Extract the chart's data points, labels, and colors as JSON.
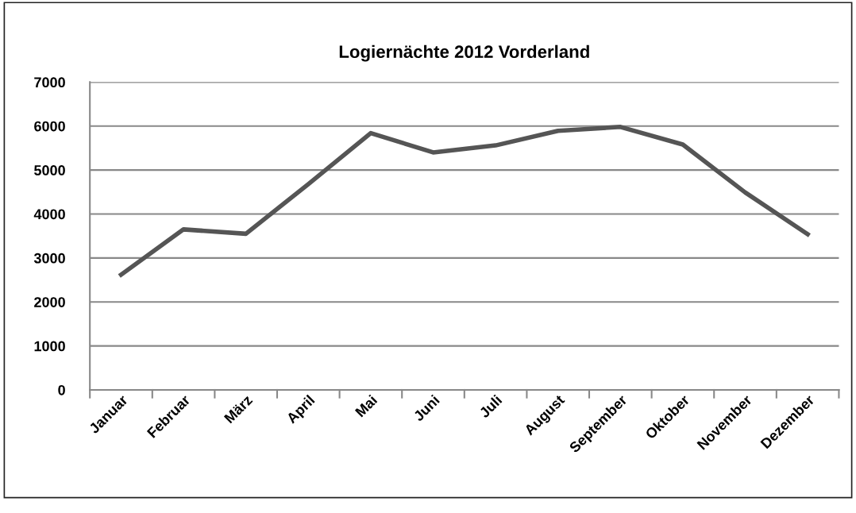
{
  "chart_data": {
    "type": "line",
    "title": "Logiernächte 2012 Vorderland",
    "categories": [
      "Januar",
      "Februar",
      "März",
      "April",
      "Mai",
      "Juni",
      "Juli",
      "August",
      "September",
      "Oktober",
      "November",
      "Dezember"
    ],
    "series": [
      {
        "color": "#555555",
        "values": [
          2620,
          3650,
          3550,
          4680,
          5840,
          5400,
          5560,
          5890,
          5980,
          5580,
          4490,
          3540
        ]
      }
    ],
    "ylim": [
      0,
      7000
    ],
    "yticks": [
      0,
      1000,
      2000,
      3000,
      4000,
      5000,
      6000,
      7000
    ],
    "grid": "y",
    "legend": false,
    "marker": "none",
    "line_style": "solid"
  }
}
